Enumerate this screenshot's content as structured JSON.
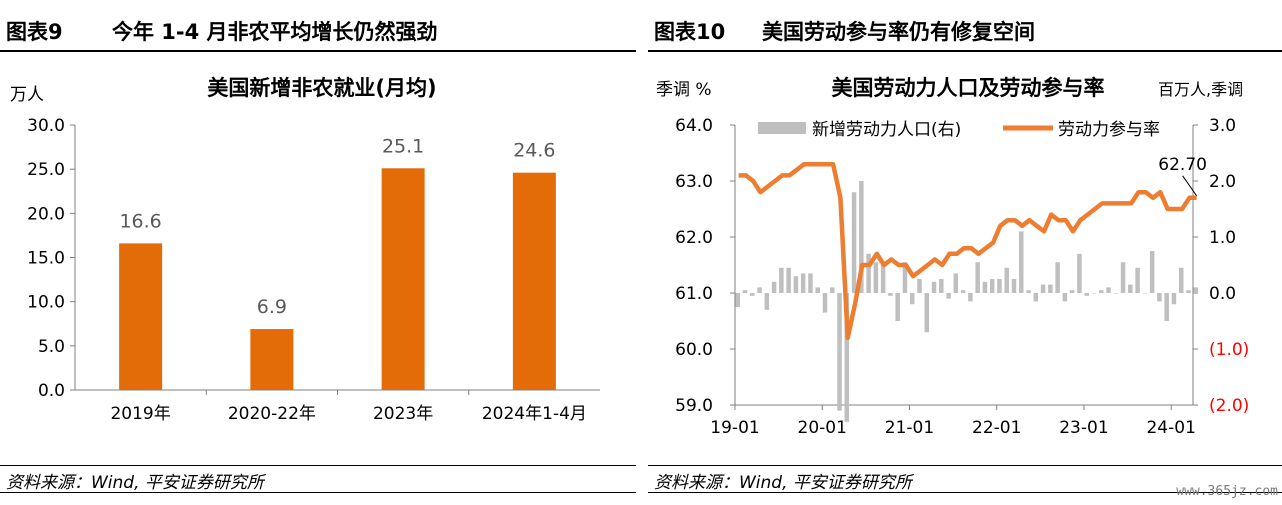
{
  "left": {
    "figure_number": "图表9",
    "figure_title": "今年 1-4 月非农平均增长仍然强劲",
    "source": "资料来源：Wind, 平安证券研究所",
    "unit": "万人"
  },
  "right": {
    "figure_number": "图表10",
    "figure_title": "美国劳动参与率仍有修复空间",
    "source": "资料来源：Wind, 平安证券研究所",
    "left_unit": "季调 %",
    "right_unit": "百万人,季调"
  },
  "watermark": "www.365jz.com",
  "colors": {
    "bar": "#E36C09",
    "line": "#ED7D31",
    "gray_bar": "#BFBFBF",
    "negative": "#FF0000"
  },
  "chart_data": [
    {
      "type": "bar",
      "title": "美国新增非农就业(月均)",
      "ylabel": "万人",
      "categories": [
        "2019年",
        "2020-22年",
        "2023年",
        "2024年1-4月"
      ],
      "values": [
        16.6,
        6.9,
        25.1,
        24.6
      ],
      "value_labels": [
        "16.6",
        "6.9",
        "25.1",
        "24.6"
      ],
      "ylim": [
        0,
        30
      ],
      "yticks": [
        0,
        5,
        10,
        15,
        20,
        25,
        30
      ],
      "ytick_labels": [
        "0.0",
        "5.0",
        "10.0",
        "15.0",
        "20.0",
        "25.0",
        "30.0"
      ],
      "grid": false
    },
    {
      "type": "line",
      "title": "美国劳动力人口及劳动参与率",
      "left_axis_label": "季调 %",
      "right_axis_label": "百万人,季调",
      "xtick_labels": [
        "19-01",
        "20-01",
        "21-01",
        "22-01",
        "23-01",
        "24-01"
      ],
      "xtick_months": [
        0,
        12,
        24,
        36,
        48,
        60
      ],
      "x_range_months": [
        0,
        63
      ],
      "left_ylim": [
        59.0,
        64.0
      ],
      "left_yticks": [
        59.0,
        60.0,
        61.0,
        62.0,
        63.0,
        64.0
      ],
      "left_ytick_labels": [
        "59.0",
        "60.0",
        "61.0",
        "62.0",
        "63.0",
        "64.0"
      ],
      "right_ylim": [
        -2.0,
        3.0
      ],
      "right_yticks": [
        -2.0,
        -1.0,
        0.0,
        1.0,
        2.0,
        3.0
      ],
      "right_ytick_labels": [
        "(2.0)",
        "(1.0)",
        "0.0",
        "1.0",
        "2.0",
        "3.0"
      ],
      "legend": [
        "新增劳动力人口(右)",
        "劳动力参与率"
      ],
      "legend_position": "top",
      "annotation": "62.70",
      "series": [
        {
          "name": "新增劳动力人口(右)",
          "type": "bar",
          "axis": "right",
          "values": [
            -0.25,
            0.05,
            -0.05,
            0.1,
            -0.3,
            0.2,
            0.45,
            0.45,
            0.3,
            0.35,
            0.35,
            0.1,
            -0.35,
            0.1,
            -2.1,
            -2.3,
            1.8,
            2.0,
            0.7,
            0.55,
            0.55,
            -0.05,
            -0.5,
            0.55,
            -0.2,
            0.25,
            -0.7,
            0.2,
            0.25,
            -0.1,
            0.35,
            0.05,
            -0.15,
            0.55,
            0.2,
            0.25,
            0.25,
            0.45,
            0.25,
            1.1,
            0.05,
            -0.15,
            0.15,
            0.15,
            0.55,
            -0.15,
            0.05,
            0.7,
            -0.05,
            0.0,
            0.05,
            0.1,
            0.0,
            0.55,
            0.15,
            0.45,
            0.0,
            0.75,
            -0.15,
            -0.5,
            -0.2,
            0.45,
            0.05,
            0.1
          ],
          "color": "#BFBFBF"
        },
        {
          "name": "劳动力参与率",
          "type": "line",
          "axis": "left",
          "values": [
            63.1,
            63.1,
            63.0,
            62.8,
            62.9,
            63.0,
            63.1,
            63.1,
            63.2,
            63.3,
            63.3,
            63.3,
            63.3,
            63.3,
            62.7,
            60.2,
            60.8,
            61.5,
            61.5,
            61.7,
            61.5,
            61.6,
            61.5,
            61.5,
            61.3,
            61.4,
            61.5,
            61.6,
            61.5,
            61.7,
            61.7,
            61.8,
            61.8,
            61.7,
            61.8,
            61.9,
            62.2,
            62.3,
            62.3,
            62.2,
            62.3,
            62.2,
            62.1,
            62.4,
            62.3,
            62.3,
            62.1,
            62.3,
            62.4,
            62.5,
            62.6,
            62.6,
            62.6,
            62.6,
            62.6,
            62.8,
            62.8,
            62.7,
            62.8,
            62.5,
            62.5,
            62.5,
            62.7,
            62.7
          ],
          "color": "#ED7D31"
        }
      ]
    }
  ]
}
